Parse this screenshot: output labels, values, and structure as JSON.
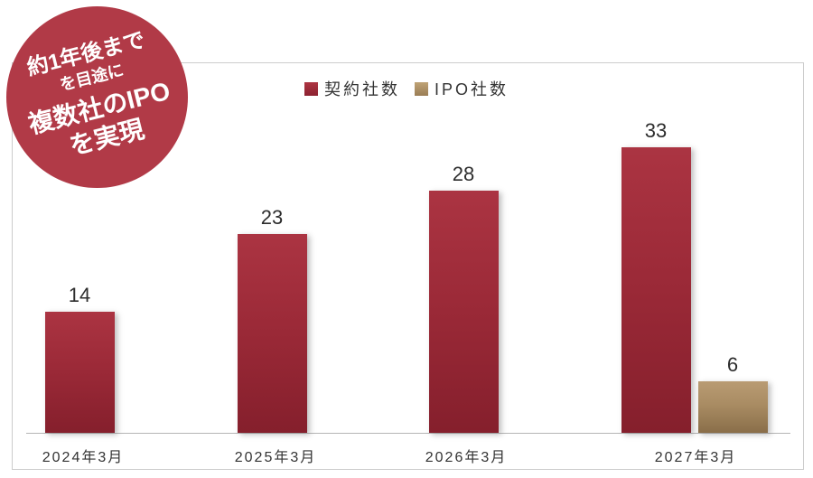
{
  "badge": {
    "lines": [
      "約1年後まで",
      "を目途に",
      "複数社のIPO",
      "を実現"
    ],
    "bg_color": "#b13a47",
    "text_color": "#ffffff"
  },
  "chart_data": {
    "type": "bar",
    "categories": [
      "2024年3月",
      "2025年3月",
      "2026年3月",
      "2027年3月"
    ],
    "series": [
      {
        "name": "契約社数",
        "values": [
          14,
          23,
          28,
          33
        ],
        "color_top": "#ab3442",
        "color_bottom": "#851f2c"
      },
      {
        "name": "IPO社数",
        "values": [
          null,
          null,
          null,
          6
        ],
        "color_top": "#b99b73",
        "color_bottom": "#8a6e49"
      }
    ],
    "title": "",
    "xlabel": "",
    "ylabel": "",
    "ylim": [
      0,
      35
    ],
    "grid": false,
    "value_labels_shown": true,
    "legend_position": "top-center",
    "axis_colors": {
      "x_line": "#b5b5b5",
      "frame_border": "#cccccc"
    }
  }
}
